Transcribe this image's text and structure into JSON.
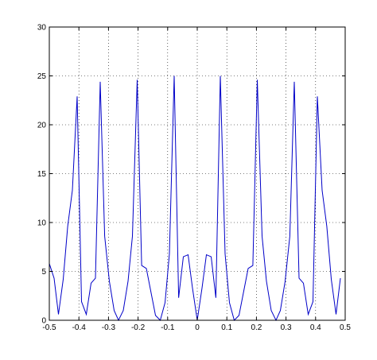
{
  "chart_data": {
    "type": "line",
    "title": "",
    "xlabel": "",
    "ylabel": "",
    "xlim": [
      -0.5,
      0.5
    ],
    "ylim": [
      0,
      30
    ],
    "grid": true,
    "grid_style": "dotted",
    "x_ticks": [
      -0.5,
      -0.4,
      -0.3,
      -0.2,
      -0.1,
      0,
      0.1,
      0.2,
      0.3,
      0.4,
      0.5
    ],
    "x_tick_labels": [
      "-0.5",
      "-0.4",
      "-0.3",
      "-0.2",
      "-0.1",
      "0",
      "0.1",
      "0.2",
      "0.3",
      "0.4",
      "0.5"
    ],
    "y_ticks": [
      0,
      5,
      10,
      15,
      20,
      25,
      30
    ],
    "y_tick_labels": [
      "0",
      "5",
      "10",
      "15",
      "20",
      "25",
      "30"
    ],
    "series": [
      {
        "color": "#0000c8",
        "x": [
          -0.5,
          -0.484,
          -0.469,
          -0.453,
          -0.438,
          -0.422,
          -0.406,
          -0.391,
          -0.375,
          -0.359,
          -0.344,
          -0.328,
          -0.313,
          -0.297,
          -0.281,
          -0.266,
          -0.25,
          -0.234,
          -0.219,
          -0.203,
          -0.188,
          -0.172,
          -0.156,
          -0.141,
          -0.125,
          -0.109,
          -0.094,
          -0.078,
          -0.063,
          -0.047,
          -0.031,
          -0.016,
          0.0,
          0.016,
          0.031,
          0.047,
          0.063,
          0.078,
          0.094,
          0.109,
          0.125,
          0.141,
          0.156,
          0.172,
          0.188,
          0.203,
          0.219,
          0.234,
          0.25,
          0.266,
          0.281,
          0.297,
          0.313,
          0.328,
          0.344,
          0.359,
          0.375,
          0.391,
          0.406,
          0.422,
          0.438,
          0.453,
          0.469,
          0.484
        ],
        "y": [
          5.8,
          4.3,
          0.6,
          4.2,
          9.6,
          13.3,
          22.9,
          1.9,
          0.6,
          3.8,
          4.3,
          24.4,
          8.6,
          4.0,
          1.0,
          0.0,
          1.0,
          4.0,
          8.6,
          24.6,
          5.6,
          5.3,
          2.8,
          0.5,
          0.0,
          1.8,
          6.8,
          25.0,
          2.3,
          6.5,
          6.7,
          3.3,
          0.0,
          3.3,
          6.7,
          6.5,
          2.3,
          25.0,
          6.8,
          1.8,
          0.0,
          0.5,
          2.8,
          5.3,
          5.6,
          24.6,
          8.6,
          4.0,
          1.0,
          0.0,
          1.0,
          4.0,
          8.6,
          24.4,
          4.3,
          3.8,
          0.6,
          1.9,
          22.9,
          13.3,
          9.6,
          4.2,
          0.6,
          4.3
        ]
      }
    ]
  }
}
